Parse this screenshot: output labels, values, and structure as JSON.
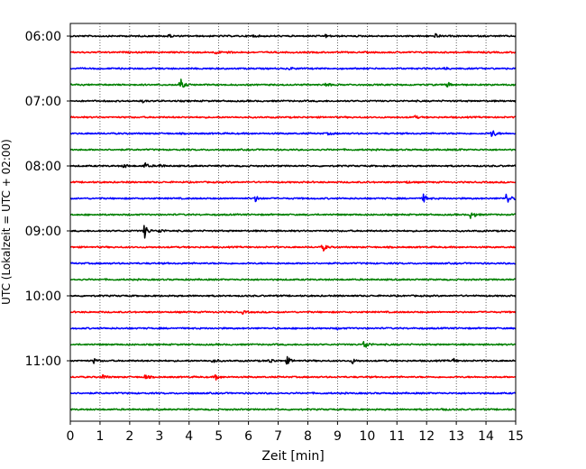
{
  "chart_data": {
    "type": "line",
    "title": "",
    "xlabel": "Zeit  [min]",
    "ylabel": "UTC (Lokalzeit = UTC + 02:00)",
    "xlim": [
      0,
      15
    ],
    "x_ticks": [
      "0",
      "1",
      "2",
      "3",
      "4",
      "5",
      "6",
      "7",
      "8",
      "9",
      "10",
      "11",
      "12",
      "13",
      "14",
      "15"
    ],
    "y_ticks": [
      "06:00",
      "07:00",
      "08:00",
      "09:00",
      "10:00",
      "11:00"
    ],
    "grid": "vertical-dotted",
    "colors": [
      "#000000",
      "#ff0000",
      "#0000ff",
      "#008000"
    ],
    "trace_interval_minutes": 15,
    "series": [
      {
        "start": "06:00",
        "color": "#000000",
        "events": [
          [
            3.3,
            0.25
          ],
          [
            6.1,
            0.2
          ],
          [
            8.6,
            0.2
          ],
          [
            12.3,
            0.3
          ]
        ]
      },
      {
        "start": "06:15",
        "color": "#ff0000",
        "events": [
          [
            4.9,
            0.25
          ],
          [
            5.3,
            0.2
          ]
        ]
      },
      {
        "start": "06:30",
        "color": "#0000ff",
        "events": [
          [
            7.4,
            0.2
          ],
          [
            12.6,
            0.2
          ]
        ]
      },
      {
        "start": "06:45",
        "color": "#008000",
        "events": [
          [
            3.7,
            0.9
          ],
          [
            8.6,
            0.4
          ],
          [
            12.7,
            0.4
          ]
        ]
      },
      {
        "start": "07:00",
        "color": "#000000",
        "events": [
          [
            2.4,
            0.2
          ]
        ]
      },
      {
        "start": "07:15",
        "color": "#ff0000",
        "events": [
          [
            11.6,
            0.2
          ]
        ]
      },
      {
        "start": "07:30",
        "color": "#0000ff",
        "events": [
          [
            14.2,
            0.7
          ],
          [
            8.7,
            0.2
          ]
        ]
      },
      {
        "start": "07:45",
        "color": "#008000",
        "events": [
          [
            13.0,
            0.15
          ]
        ]
      },
      {
        "start": "08:00",
        "color": "#000000",
        "events": [
          [
            2.5,
            0.45
          ],
          [
            1.8,
            0.3
          ],
          [
            3.0,
            0.3
          ]
        ]
      },
      {
        "start": "08:15",
        "color": "#ff0000",
        "events": [
          [
            11.3,
            0.2
          ]
        ]
      },
      {
        "start": "08:30",
        "color": "#0000ff",
        "events": [
          [
            6.2,
            0.6
          ],
          [
            11.9,
            0.6
          ],
          [
            14.7,
            1.0
          ]
        ]
      },
      {
        "start": "08:45",
        "color": "#008000",
        "events": [
          [
            13.5,
            0.8
          ]
        ]
      },
      {
        "start": "09:00",
        "color": "#000000",
        "events": [
          [
            2.5,
            1.0
          ],
          [
            3.0,
            0.35
          ]
        ]
      },
      {
        "start": "09:15",
        "color": "#ff0000",
        "events": [
          [
            8.5,
            0.6
          ]
        ]
      },
      {
        "start": "09:30",
        "color": "#0000ff",
        "events": []
      },
      {
        "start": "09:45",
        "color": "#008000",
        "events": []
      },
      {
        "start": "10:00",
        "color": "#000000",
        "events": []
      },
      {
        "start": "10:15",
        "color": "#ff0000",
        "events": [
          [
            5.8,
            0.2
          ]
        ]
      },
      {
        "start": "10:30",
        "color": "#0000ff",
        "events": [
          [
            9.0,
            0.15
          ]
        ]
      },
      {
        "start": "10:45",
        "color": "#008000",
        "events": [
          [
            9.9,
            0.9
          ]
        ]
      },
      {
        "start": "11:00",
        "color": "#000000",
        "events": [
          [
            0.8,
            0.35
          ],
          [
            4.8,
            0.35
          ],
          [
            6.7,
            0.45
          ],
          [
            7.3,
            0.55
          ],
          [
            9.5,
            0.35
          ],
          [
            12.9,
            0.3
          ]
        ]
      },
      {
        "start": "11:15",
        "color": "#ff0000",
        "events": [
          [
            1.1,
            0.35
          ],
          [
            2.5,
            0.35
          ],
          [
            4.9,
            0.4
          ]
        ]
      },
      {
        "start": "11:30",
        "color": "#0000ff",
        "events": []
      },
      {
        "start": "11:45",
        "color": "#008000",
        "events": [
          [
            12.5,
            0.2
          ]
        ]
      }
    ]
  }
}
